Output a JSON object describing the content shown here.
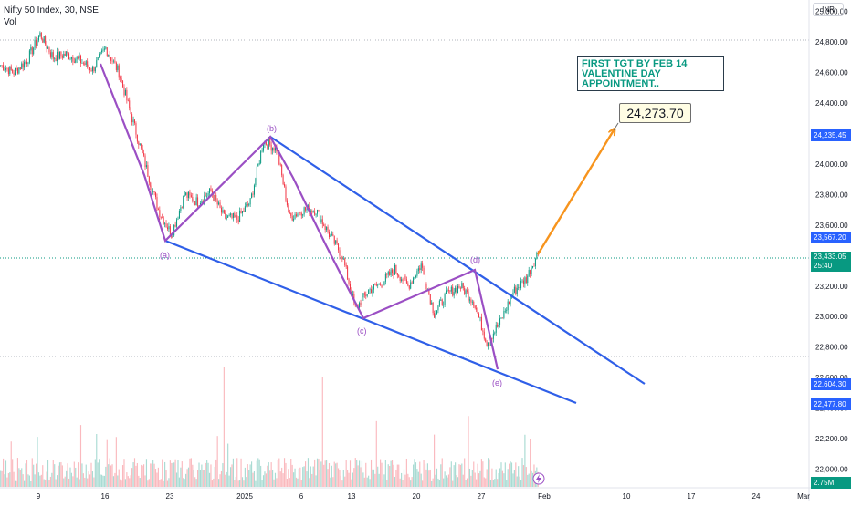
{
  "header": {
    "symbol": "Nifty 50 Index, 30, NSE",
    "volume_label": "Vol"
  },
  "currency": "INR",
  "annotations": {
    "note_lines": [
      "FIRST TGT BY FEB 14",
      "VALENTINE DAY",
      "APPOINTMENT.."
    ],
    "target_callout": "24,273.70",
    "wave_labels": [
      "(a)",
      "(b)",
      "(c)",
      "(d)",
      "(e)"
    ]
  },
  "price_labels": [
    {
      "text": "24,235.45",
      "sub": "",
      "value": 24235.45,
      "color": "#2962ff"
    },
    {
      "text": "23,567.20",
      "sub": "",
      "value": 23567.2,
      "color": "#2962ff"
    },
    {
      "text": "23,433.05",
      "sub": "25:40",
      "value": 23433.05,
      "color": "#089981"
    },
    {
      "text": "22,604.30",
      "sub": "",
      "value": 22604.3,
      "color": "#2962ff"
    },
    {
      "text": "22,477.80",
      "sub": "",
      "value": 22477.8,
      "color": "#2962ff"
    },
    {
      "text": "2.75M",
      "sub": "",
      "value": null,
      "color": "#089981"
    }
  ],
  "colors": {
    "up": "#089981",
    "down": "#f23645",
    "trendline": "#2f5fe8",
    "wave": "#9b4fc4",
    "target_arrow": "#f7941d"
  },
  "chart_data": {
    "type": "candlestick",
    "title": "Nifty 50 Index, 30, NSE",
    "ylim": [
      21890,
      25010
    ],
    "y_ticks": [
      "25,000.00",
      "24,800.00",
      "24,600.00",
      "24,400.00",
      "24,200.00",
      "24,000.00",
      "23,800.00",
      "23,600.00",
      "23,400.00",
      "23,200.00",
      "23,000.00",
      "22,800.00",
      "22,600.00",
      "22,400.00",
      "22,200.00",
      "22,000.00"
    ],
    "y_tick_values": [
      25000,
      24800,
      24600,
      24400,
      24200,
      24000,
      23800,
      23600,
      23400,
      23200,
      23000,
      22800,
      22600,
      22400,
      22200,
      22000
    ],
    "x_ticks": [
      "9",
      "16",
      "23",
      "2025",
      "6",
      "13",
      "20",
      "27",
      "Feb",
      "10",
      "17",
      "24",
      "Mar"
    ],
    "price_path": [
      [
        "Dec 4",
        24650
      ],
      [
        "Dec 5",
        24600
      ],
      [
        "Dec 6",
        24680
      ],
      [
        "Dec 9",
        24850
      ],
      [
        "Dec 10",
        24700
      ],
      [
        "Dec 11",
        24720
      ],
      [
        "Dec 12",
        24680
      ],
      [
        "Dec 13",
        24620
      ],
      [
        "Dec 16",
        24760
      ],
      [
        "Dec 17",
        24600
      ],
      [
        "Dec 18",
        24300
      ],
      [
        "Dec 19",
        24000
      ],
      [
        "Dec 20",
        23700
      ],
      [
        "Dec 23",
        23540
      ],
      [
        "Dec 24",
        23800
      ],
      [
        "Dec 26",
        23750
      ],
      [
        "Dec 27",
        23820
      ],
      [
        "Dec 30",
        23650
      ],
      [
        "Dec 31",
        23640
      ],
      [
        "Jan 1",
        23750
      ],
      [
        "Jan 2",
        24150
      ],
      [
        "Jan 3",
        24100
      ],
      [
        "Jan 6",
        23650
      ],
      [
        "Jan 7",
        23700
      ],
      [
        "Jan 8",
        23700
      ],
      [
        "Jan 9",
        23540
      ],
      [
        "Jan 10",
        23400
      ],
      [
        "Jan 13",
        23050
      ],
      [
        "Jan 14",
        23170
      ],
      [
        "Jan 15",
        23220
      ],
      [
        "Jan 16",
        23310
      ],
      [
        "Jan 17",
        23200
      ],
      [
        "Jan 20",
        23340
      ],
      [
        "Jan 21",
        23020
      ],
      [
        "Jan 22",
        23150
      ],
      [
        "Jan 23",
        23200
      ],
      [
        "Jan 24",
        23100
      ],
      [
        "Jan 27",
        22830
      ],
      [
        "Jan 28",
        22960
      ],
      [
        "Jan 29",
        23160
      ],
      [
        "Jan 30",
        23250
      ],
      [
        "Jan 31",
        23440
      ]
    ],
    "wave_points": [
      {
        "label": "(a)",
        "date": "Dec 23",
        "value": 23540
      },
      {
        "label": "(b)",
        "date": "Jan 2",
        "value": 24230
      },
      {
        "label": "(c)",
        "date": "Jan 13",
        "value": 23030
      },
      {
        "label": "(d)",
        "date": "Jan 27",
        "value": 23340
      },
      {
        "label": "(e)",
        "date": "Jan 28",
        "value": 22700
      }
    ],
    "target": 24273.7,
    "last_price": 23433.05,
    "volume_last": "2.75M"
  }
}
